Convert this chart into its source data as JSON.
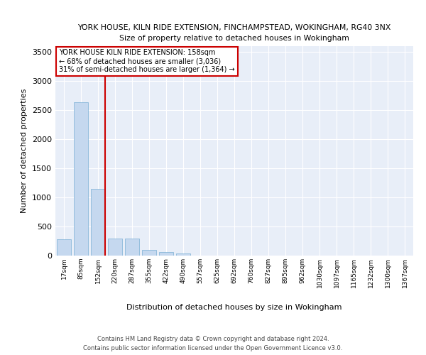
{
  "title": "YORK HOUSE, KILN RIDE EXTENSION, FINCHAMPSTEAD, WOKINGHAM, RG40 3NX",
  "subtitle": "Size of property relative to detached houses in Wokingham",
  "xlabel_bottom": "Distribution of detached houses by size in Wokingham",
  "ylabel": "Number of detached properties",
  "bar_color": "#c5d8ef",
  "bar_edge_color": "#7aafd4",
  "annotation_line_color": "#cc0000",
  "annotation_box_color": "#cc0000",
  "annotation_text": "YORK HOUSE KILN RIDE EXTENSION: 158sqm\n← 68% of detached houses are smaller (3,036)\n31% of semi-detached houses are larger (1,364) →",
  "property_bin_index": 2,
  "categories": [
    "17sqm",
    "85sqm",
    "152sqm",
    "220sqm",
    "287sqm",
    "355sqm",
    "422sqm",
    "490sqm",
    "557sqm",
    "625sqm",
    "692sqm",
    "760sqm",
    "827sqm",
    "895sqm",
    "962sqm",
    "1030sqm",
    "1097sqm",
    "1165sqm",
    "1232sqm",
    "1300sqm",
    "1367sqm"
  ],
  "values": [
    280,
    2640,
    1150,
    290,
    290,
    100,
    60,
    35,
    0,
    0,
    0,
    0,
    0,
    0,
    0,
    0,
    0,
    0,
    0,
    0,
    0
  ],
  "ylim": [
    0,
    3600
  ],
  "yticks": [
    0,
    500,
    1000,
    1500,
    2000,
    2500,
    3000,
    3500
  ],
  "background_color": "#e8eef8",
  "footer1": "Contains HM Land Registry data © Crown copyright and database right 2024.",
  "footer2": "Contains public sector information licensed under the Open Government Licence v3.0."
}
